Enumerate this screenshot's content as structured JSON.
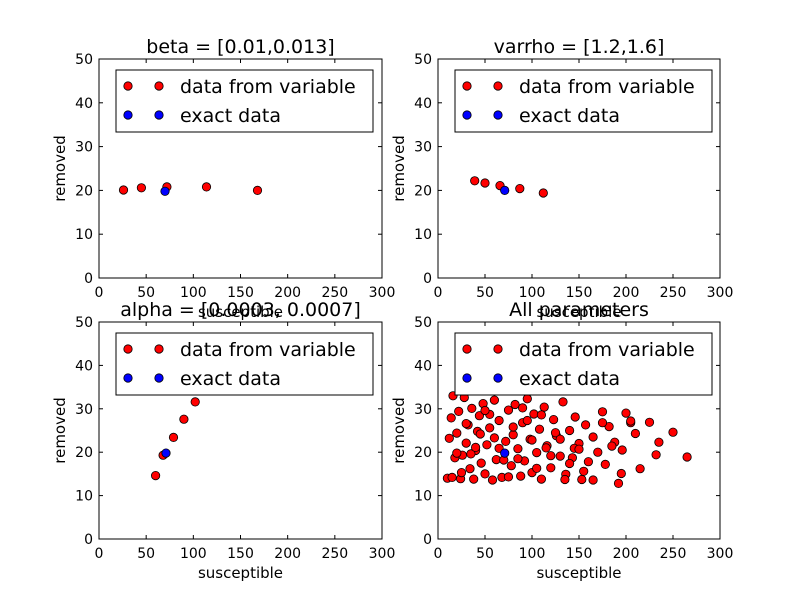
{
  "chart_data": [
    {
      "type": "scatter",
      "title": "beta = [0.01,0.013]",
      "xlabel": "susceptible",
      "ylabel": "removed",
      "xlim": [
        0,
        300
      ],
      "ylim": [
        0,
        50
      ],
      "xticks": [
        0,
        50,
        100,
        150,
        200,
        250,
        300
      ],
      "yticks": [
        0,
        10,
        20,
        30,
        40,
        50
      ],
      "legend_position": "top",
      "series": [
        {
          "name": "data from variable",
          "color": "#ff0000",
          "x": [
            26,
            45,
            72,
            114,
            168
          ],
          "y": [
            20.1,
            20.6,
            20.8,
            20.8,
            20.0
          ]
        },
        {
          "name": "exact data",
          "color": "#0000ff",
          "x": [
            70
          ],
          "y": [
            19.8
          ]
        }
      ]
    },
    {
      "type": "scatter",
      "title": "varrho = [1.2,1.6]",
      "xlabel": "susceptible",
      "ylabel": "removed",
      "xlim": [
        0,
        300
      ],
      "ylim": [
        0,
        50
      ],
      "xticks": [
        0,
        50,
        100,
        150,
        200,
        250,
        300
      ],
      "yticks": [
        0,
        10,
        20,
        30,
        40,
        50
      ],
      "legend_position": "top",
      "series": [
        {
          "name": "data from variable",
          "color": "#ff0000",
          "x": [
            39,
            50,
            66,
            87,
            112
          ],
          "y": [
            22.2,
            21.7,
            21.1,
            20.4,
            19.4
          ]
        },
        {
          "name": "exact data",
          "color": "#0000ff",
          "x": [
            71
          ],
          "y": [
            20.0
          ]
        }
      ]
    },
    {
      "type": "scatter",
      "title": "alpha = [0.0003, 0.0007]",
      "xlabel": "susceptible",
      "ylabel": "removed",
      "xlim": [
        0,
        300
      ],
      "ylim": [
        0,
        50
      ],
      "xticks": [
        0,
        50,
        100,
        150,
        200,
        250,
        300
      ],
      "yticks": [
        0,
        10,
        20,
        30,
        40,
        50
      ],
      "legend_position": "top",
      "series": [
        {
          "name": "data from variable",
          "color": "#ff0000",
          "x": [
            60,
            68,
            79,
            90,
            102
          ],
          "y": [
            14.6,
            19.3,
            23.4,
            27.6,
            31.6
          ]
        },
        {
          "name": "exact data",
          "color": "#0000ff",
          "x": [
            71
          ],
          "y": [
            19.8
          ]
        }
      ]
    },
    {
      "type": "scatter",
      "title": "All parameters",
      "xlabel": "susceptible",
      "ylabel": "removed",
      "xlim": [
        0,
        300
      ],
      "ylim": [
        0,
        50
      ],
      "xticks": [
        0,
        50,
        100,
        150,
        200,
        250,
        300
      ],
      "yticks": [
        0,
        10,
        20,
        30,
        40,
        50
      ],
      "legend_position": "top",
      "series": [
        {
          "name": "data from variable",
          "color": "#ff0000",
          "x": [
            10,
            12,
            14,
            16,
            18,
            20,
            22,
            24,
            26,
            28,
            30,
            32,
            34,
            36,
            38,
            40,
            42,
            44,
            46,
            48,
            50,
            52,
            55,
            58,
            60,
            62,
            65,
            68,
            72,
            75,
            78,
            80,
            82,
            85,
            88,
            90,
            92,
            95,
            98,
            100,
            102,
            105,
            108,
            110,
            113,
            116,
            120,
            123,
            126,
            130,
            133,
            136,
            140,
            143,
            146,
            150,
            153,
            157,
            160,
            165,
            170,
            175,
            178,
            182,
            188,
            192,
            196,
            200,
            205,
            210,
            215,
            225,
            232,
            235,
            250,
            265,
            15,
            25,
            35,
            45,
            55,
            65,
            75,
            85,
            95,
            105,
            115,
            125,
            135,
            145,
            155,
            165,
            175,
            185,
            195,
            205,
            20,
            30,
            40,
            50,
            60,
            70,
            80,
            90,
            100,
            110,
            120,
            130,
            140,
            150
          ],
          "y": [
            14.0,
            23.2,
            27.9,
            33.0,
            18.7,
            24.4,
            29.4,
            13.9,
            19.3,
            32.6,
            22.1,
            26.3,
            16.2,
            30.1,
            13.8,
            20.4,
            24.8,
            28.4,
            17.5,
            31.2,
            15.0,
            21.7,
            25.6,
            13.6,
            32.0,
            18.3,
            27.3,
            14.2,
            22.5,
            29.7,
            16.9,
            24.0,
            31.0,
            20.8,
            14.5,
            26.8,
            18.0,
            32.3,
            23.0,
            15.3,
            28.8,
            19.9,
            25.3,
            13.8,
            30.4,
            21.5,
            16.4,
            27.5,
            23.8,
            19.1,
            31.6,
            14.9,
            25.0,
            18.7,
            28.1,
            22.0,
            13.7,
            26.3,
            17.8,
            13.6,
            20.0,
            29.3,
            17.2,
            25.9,
            22.3,
            12.8,
            20.5,
            29.0,
            26.8,
            24.3,
            16.2,
            26.9,
            19.4,
            22.3,
            24.6,
            18.9,
            14.2,
            15.3,
            19.6,
            24.2,
            28.7,
            20.9,
            14.3,
            18.5,
            27.3,
            16.3,
            21.0,
            24.5,
            13.7,
            20.9,
            15.6,
            23.5,
            26.8,
            21.4,
            15.1,
            27.2,
            19.8,
            26.6,
            21.1,
            29.6,
            23.3,
            18.2,
            25.8,
            30.2,
            22.8,
            28.6,
            19.2,
            23.0,
            17.4,
            20.7
          ]
        },
        {
          "name": "exact data",
          "color": "#0000ff",
          "x": [
            71
          ],
          "y": [
            19.8
          ]
        }
      ]
    }
  ]
}
